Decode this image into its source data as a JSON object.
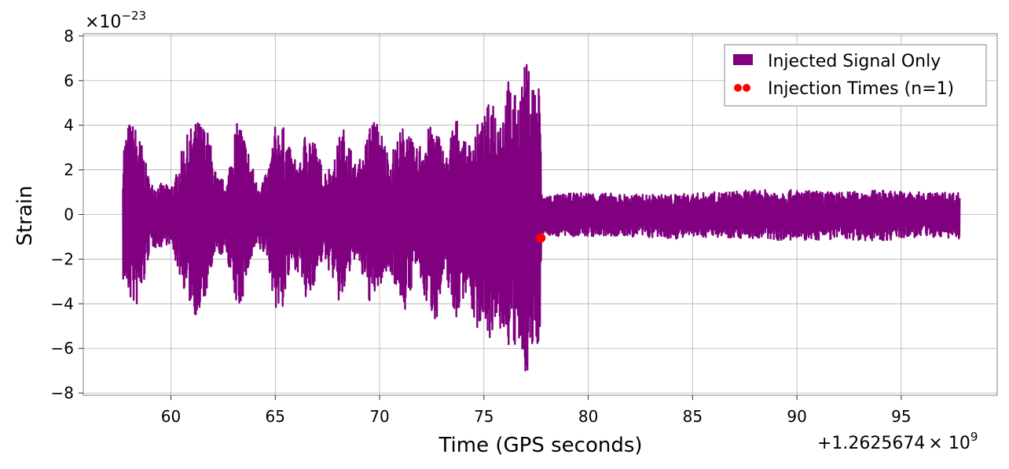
{
  "chart_data": {
    "type": "line",
    "xlabel": "Time (GPS seconds)",
    "ylabel": "Strain",
    "x_offset_label": "+1.2625674",
    "x_offset_exp_base": "× 10",
    "x_offset_exp": "9",
    "y_scale_base": "×10",
    "y_scale_exp": "−23",
    "xlim": [
      55.8,
      99.6
    ],
    "ylim": [
      -8.1,
      8.1
    ],
    "x_ticks": [
      60,
      65,
      70,
      75,
      80,
      85,
      90,
      95
    ],
    "x_tick_labels": [
      "60",
      "65",
      "70",
      "75",
      "80",
      "85",
      "90",
      "95"
    ],
    "y_ticks": [
      -8,
      -6,
      -4,
      -2,
      0,
      2,
      4,
      6,
      8
    ],
    "y_tick_labels": [
      "−8",
      "−6",
      "−4",
      "−2",
      "0",
      "2",
      "4",
      "6",
      "8"
    ],
    "grid": true,
    "legend_position": "top-right",
    "series": [
      {
        "name": "Injected Signal Only",
        "color": "#800080",
        "x_range": [
          57.7,
          97.8
        ],
        "envelope": [
          [
            57.7,
            3.3,
            -3.0
          ],
          [
            58.0,
            4.2,
            -3.8
          ],
          [
            58.3,
            4.0,
            -4.3
          ],
          [
            58.6,
            3.2,
            -3.8
          ],
          [
            59.0,
            1.4,
            -1.5
          ],
          [
            59.5,
            1.4,
            -1.5
          ],
          [
            59.9,
            1.3,
            -1.3
          ],
          [
            60.2,
            1.6,
            -2.1
          ],
          [
            60.6,
            3.2,
            -3.3
          ],
          [
            61.0,
            4.0,
            -4.3
          ],
          [
            61.4,
            4.3,
            -4.8
          ],
          [
            61.8,
            3.7,
            -3.2
          ],
          [
            62.2,
            1.7,
            -1.8
          ],
          [
            62.7,
            1.5,
            -1.9
          ],
          [
            63.0,
            3.8,
            -3.8
          ],
          [
            63.3,
            4.3,
            -4.4
          ],
          [
            63.7,
            3.0,
            -2.6
          ],
          [
            64.1,
            1.5,
            -1.6
          ],
          [
            64.6,
            1.8,
            -1.9
          ],
          [
            65.0,
            4.0,
            -4.3
          ],
          [
            65.3,
            4.2,
            -4.5
          ],
          [
            65.8,
            2.7,
            -2.3
          ],
          [
            66.2,
            2.3,
            -2.7
          ],
          [
            66.5,
            4.2,
            -4.3
          ],
          [
            66.9,
            3.3,
            -3.0
          ],
          [
            67.3,
            2.0,
            -2.0
          ],
          [
            67.8,
            2.3,
            -3.0
          ],
          [
            68.1,
            3.7,
            -4.3
          ],
          [
            68.4,
            4.0,
            -3.3
          ],
          [
            68.8,
            2.3,
            -2.0
          ],
          [
            69.2,
            2.6,
            -3.0
          ],
          [
            69.6,
            4.5,
            -4.2
          ],
          [
            70.0,
            4.0,
            -3.3
          ],
          [
            70.5,
            2.6,
            -2.5
          ],
          [
            70.9,
            3.6,
            -3.6
          ],
          [
            71.3,
            4.3,
            -4.6
          ],
          [
            71.7,
            2.8,
            -2.3
          ],
          [
            72.2,
            3.8,
            -4.0
          ],
          [
            72.7,
            4.1,
            -4.8
          ],
          [
            73.2,
            2.6,
            -2.8
          ],
          [
            73.6,
            4.6,
            -4.9
          ],
          [
            74.2,
            3.0,
            -3.3
          ],
          [
            74.6,
            4.0,
            -5.3
          ],
          [
            75.0,
            4.3,
            -4.6
          ],
          [
            75.4,
            5.6,
            -6.0
          ],
          [
            75.8,
            4.6,
            -5.3
          ],
          [
            76.2,
            6.2,
            -6.0
          ],
          [
            76.6,
            5.1,
            -6.3
          ],
          [
            77.0,
            6.9,
            -7.2
          ],
          [
            77.4,
            6.2,
            -6.3
          ],
          [
            77.7,
            6.0,
            -5.6
          ],
          [
            77.75,
            0.9,
            -0.9
          ],
          [
            78.5,
            0.9,
            -1.0
          ],
          [
            80.0,
            1.0,
            -1.0
          ],
          [
            82.0,
            0.9,
            -1.0
          ],
          [
            84.0,
            0.9,
            -1.1
          ],
          [
            86.0,
            1.0,
            -1.0
          ],
          [
            88.0,
            1.1,
            -1.1
          ],
          [
            90.0,
            1.1,
            -1.2
          ],
          [
            92.0,
            1.0,
            -1.1
          ],
          [
            94.0,
            1.1,
            -1.2
          ],
          [
            96.0,
            1.0,
            -1.0
          ],
          [
            97.8,
            1.0,
            -1.1
          ]
        ]
      },
      {
        "name": "Injection Times (n=1)",
        "color": "#ff0000",
        "type": "scatter",
        "points": [
          [
            77.73,
            -1.05
          ]
        ]
      }
    ]
  }
}
